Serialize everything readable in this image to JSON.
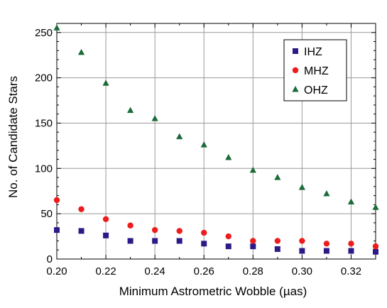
{
  "chart_data": {
    "type": "scatter",
    "xlabel": "Minimum Astrometric Wobble (µas)",
    "ylabel": "No. of Candidate Stars",
    "xlim": [
      0.2,
      0.33
    ],
    "ylim": [
      0,
      260
    ],
    "xticks": [
      0.2,
      0.22,
      0.24,
      0.26,
      0.28,
      0.3,
      0.32
    ],
    "xtick_labels": [
      "0.20",
      "0.22",
      "0.24",
      "0.26",
      "0.28",
      "0.30",
      "0.32"
    ],
    "yticks": [
      0,
      50,
      100,
      150,
      200,
      250
    ],
    "ytick_labels": [
      "0",
      "50",
      "100",
      "150",
      "200",
      "250"
    ],
    "grid": true,
    "legend_position": "top-right",
    "x": [
      0.2,
      0.21,
      0.22,
      0.23,
      0.24,
      0.25,
      0.26,
      0.27,
      0.28,
      0.29,
      0.3,
      0.31,
      0.32,
      0.33
    ],
    "series": [
      {
        "name": "IHZ",
        "marker": "square",
        "color": "#2e1a87",
        "values": [
          32,
          31,
          26,
          20,
          20,
          20,
          17,
          14,
          14,
          11,
          9,
          9,
          9,
          8
        ]
      },
      {
        "name": "MHZ",
        "marker": "circle",
        "color": "#ee1c1c",
        "values": [
          65,
          55,
          44,
          37,
          32,
          31,
          29,
          25,
          20,
          20,
          20,
          17,
          17,
          14
        ]
      },
      {
        "name": "OHZ",
        "marker": "triangle",
        "color": "#1a6b38",
        "values": [
          255,
          228,
          194,
          164,
          155,
          135,
          126,
          112,
          98,
          90,
          79,
          72,
          63,
          57
        ]
      }
    ]
  }
}
